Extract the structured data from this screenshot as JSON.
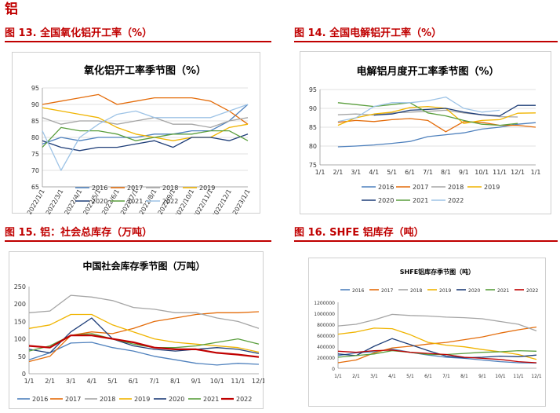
{
  "page": {
    "section_title": "铝",
    "captions": [
      "图 13. 全国氧化铝开工率（%）",
      "图 14. 全国电解铝开工率（%）",
      "图 15. 铝：社会总库存（万吨）",
      "图 16. SHFE 铝库存（吨）"
    ]
  },
  "chart_data": [
    {
      "type": "line",
      "title": "氧化铝开工率季节图（%）",
      "categories": [
        "2022/1/1",
        "2022/3/1",
        "2022/4/1",
        "2022/5/1",
        "2022/6/1",
        "2022/7/1",
        "2022/8/1",
        "2022/9/1",
        "2022/10/1",
        "2022/11/1",
        "2022/12/1",
        "2023/1/1"
      ],
      "ylim": [
        65,
        95
      ],
      "yticks": [
        65,
        70,
        75,
        80,
        85,
        90,
        95
      ],
      "grid": true,
      "legend_position": "bottom",
      "series": [
        {
          "name": "2016",
          "color": "#4f81bd",
          "values": [
            78,
            80,
            79,
            80,
            80,
            80,
            81,
            81,
            82,
            82,
            85,
            90
          ]
        },
        {
          "name": "2017",
          "color": "#e46c0a",
          "values": [
            90,
            91,
            92,
            93,
            90,
            91,
            92,
            92,
            92,
            91,
            88,
            84
          ]
        },
        {
          "name": "2018",
          "color": "#a5a5a5",
          "values": [
            86,
            84,
            85,
            85,
            84,
            85,
            86,
            84,
            84,
            83,
            85,
            86
          ]
        },
        {
          "name": "2019",
          "color": "#f0b400",
          "values": [
            89,
            88,
            87,
            86,
            83,
            81,
            80,
            79,
            80,
            80,
            83,
            84
          ]
        },
        {
          "name": "2020",
          "color": "#1f3e78",
          "values": [
            79,
            77,
            76,
            77,
            77,
            78,
            79,
            77,
            80,
            80,
            79,
            81
          ]
        },
        {
          "name": "2021",
          "color": "#5a9e3d",
          "values": [
            77,
            83,
            82,
            82,
            81,
            79,
            80,
            81,
            81,
            82,
            82,
            79
          ]
        },
        {
          "name": "2022",
          "color": "#9dc3e6",
          "values": [
            82,
            70,
            80,
            84,
            87,
            88,
            86,
            86,
            86,
            86,
            88,
            90
          ]
        }
      ]
    },
    {
      "type": "line",
      "title": "电解铝月度开工率季节图（%）",
      "categories": [
        "1/1",
        "2/1",
        "3/1",
        "4/1",
        "5/1",
        "6/1",
        "7/1",
        "8/1",
        "9/1",
        "10/1",
        "11/1",
        "12/1",
        "1/1"
      ],
      "ylim": [
        75,
        95
      ],
      "yticks": [
        75,
        80,
        85,
        90,
        95
      ],
      "grid": true,
      "legend_position": "bottom",
      "series": [
        {
          "name": "2016",
          "color": "#4f81bd",
          "values": [
            null,
            79.8,
            80.0,
            80.3,
            80.7,
            81.2,
            82.5,
            83.0,
            83.5,
            84.5,
            85.0,
            85.8,
            86.2
          ]
        },
        {
          "name": "2017",
          "color": "#e46c0a",
          "values": [
            null,
            86.3,
            86.8,
            86.5,
            87.0,
            87.3,
            86.8,
            83.8,
            86.5,
            86.3,
            85.5,
            85.5,
            85.0
          ]
        },
        {
          "name": "2018",
          "color": "#a5a5a5",
          "values": [
            null,
            88.3,
            88.5,
            88.2,
            88.8,
            89.0,
            89.2,
            89.5,
            88.8,
            88.3,
            87.8,
            87.7,
            null
          ]
        },
        {
          "name": "2019",
          "color": "#f0b400",
          "values": [
            null,
            85.5,
            87.5,
            88.5,
            89.0,
            90.2,
            90.5,
            90.0,
            86.0,
            86.8,
            87.0,
            88.7,
            88.8
          ]
        },
        {
          "name": "2020",
          "color": "#1f3e78",
          "values": [
            null,
            null,
            null,
            88.2,
            88.5,
            89.5,
            89.7,
            90.0,
            89.0,
            88.3,
            88.0,
            90.8,
            90.8
          ]
        },
        {
          "name": "2021",
          "color": "#5a9e3d",
          "values": [
            null,
            91.5,
            91.0,
            90.5,
            91.0,
            91.5,
            88.8,
            88.0,
            86.8,
            85.8,
            85.5,
            86.0,
            null
          ]
        },
        {
          "name": "2022",
          "color": "#9dc3e6",
          "values": [
            null,
            86.5,
            87.5,
            90.5,
            91.5,
            91.5,
            92.0,
            93.0,
            90.0,
            89.0,
            89.5,
            null,
            null
          ]
        }
      ]
    },
    {
      "type": "line",
      "title": "中国社会库存季节图（万吨）",
      "categories": [
        "1/1",
        "2/1",
        "3/1",
        "4/1",
        "5/1",
        "6/1",
        "7/1",
        "8/1",
        "9/1",
        "10/1",
        "11/1",
        "12/1"
      ],
      "ylim": [
        0,
        250
      ],
      "yticks": [
        0,
        50,
        100,
        150,
        200,
        250
      ],
      "grid": false,
      "legend_position": "bottom",
      "series": [
        {
          "name": "2016",
          "color": "#4f81bd",
          "values": [
            40,
            60,
            88,
            90,
            75,
            65,
            50,
            40,
            30,
            25,
            30,
            27
          ]
        },
        {
          "name": "2017",
          "color": "#e46c0a",
          "values": [
            35,
            50,
            110,
            120,
            115,
            130,
            150,
            160,
            170,
            175,
            175,
            178
          ]
        },
        {
          "name": "2018",
          "color": "#a5a5a5",
          "values": [
            175,
            180,
            225,
            220,
            210,
            190,
            185,
            175,
            175,
            160,
            150,
            130
          ]
        },
        {
          "name": "2019",
          "color": "#f0b400",
          "values": [
            130,
            140,
            170,
            170,
            140,
            120,
            100,
            90,
            85,
            80,
            75,
            62
          ]
        },
        {
          "name": "2020",
          "color": "#1f3e78",
          "values": [
            70,
            60,
            120,
            160,
            100,
            80,
            70,
            65,
            70,
            75,
            70,
            58
          ]
        },
        {
          "name": "2021",
          "color": "#5a9e3d",
          "values": [
            65,
            80,
            110,
            115,
            100,
            85,
            75,
            75,
            80,
            90,
            100,
            85
          ]
        },
        {
          "name": "2022",
          "color": "#c00000",
          "values": [
            80,
            75,
            110,
            110,
            100,
            90,
            75,
            70,
            70,
            60,
            55,
            48
          ]
        }
      ]
    },
    {
      "type": "line",
      "title": "SHFE铝库存季节图（吨）",
      "categories": [
        "1/1",
        "2/1",
        "3/1",
        "4/1",
        "5/1",
        "6/1",
        "7/1",
        "8/1",
        "9/1",
        "10/1",
        "11/1",
        "12/1"
      ],
      "ylim": [
        0,
        1200000
      ],
      "yticks": [
        0,
        200000,
        400000,
        600000,
        800000,
        1000000,
        1200000
      ],
      "grid": false,
      "legend_position": "top",
      "series": [
        {
          "name": "2016",
          "color": "#4f81bd",
          "values": [
            230000,
            280000,
            300000,
            350000,
            290000,
            240000,
            200000,
            180000,
            150000,
            120000,
            100000,
            95000
          ]
        },
        {
          "name": "2017",
          "color": "#e46c0a",
          "values": [
            100000,
            150000,
            280000,
            370000,
            400000,
            440000,
            470000,
            520000,
            570000,
            640000,
            700000,
            750000
          ]
        },
        {
          "name": "2018",
          "color": "#a5a5a5",
          "values": [
            770000,
            800000,
            880000,
            980000,
            960000,
            950000,
            930000,
            920000,
            900000,
            850000,
            800000,
            680000
          ]
        },
        {
          "name": "2019",
          "color": "#f0b400",
          "values": [
            620000,
            660000,
            730000,
            720000,
            610000,
            470000,
            420000,
            390000,
            340000,
            300000,
            250000,
            160000
          ]
        },
        {
          "name": "2020",
          "color": "#1f3e78",
          "values": [
            260000,
            230000,
            400000,
            540000,
            430000,
            320000,
            220000,
            190000,
            200000,
            220000,
            210000,
            240000
          ]
        },
        {
          "name": "2021",
          "color": "#5a9e3d",
          "values": [
            200000,
            230000,
            260000,
            320000,
            290000,
            250000,
            250000,
            270000,
            290000,
            300000,
            320000,
            310000
          ]
        },
        {
          "name": "2022",
          "color": "#c00000",
          "values": [
            310000,
            290000,
            320000,
            330000,
            290000,
            270000,
            250000,
            200000,
            180000,
            160000,
            120000,
            100000
          ]
        }
      ]
    }
  ]
}
